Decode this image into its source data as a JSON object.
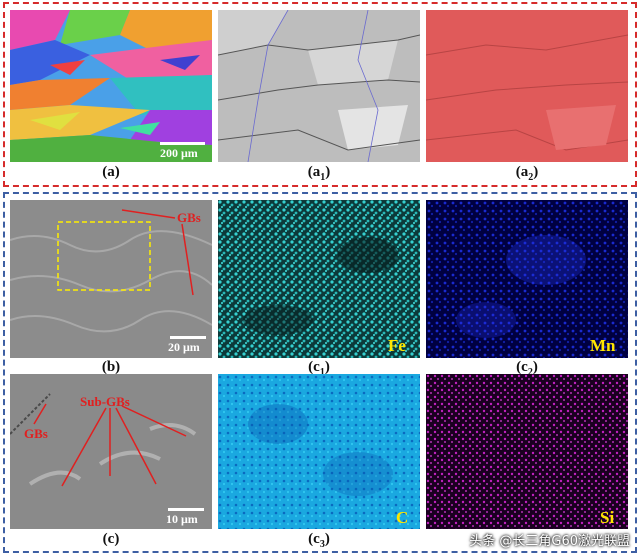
{
  "top_group": {
    "border_color": "#d62b2b",
    "captions": {
      "a": "(a)",
      "a1_base": "(a",
      "a1_sub": "1",
      "a2_base": "(a",
      "a2_sub": "2",
      "close": ")"
    },
    "scale_label": "200 μm"
  },
  "bottom_group": {
    "border_color": "#3d5fa3",
    "captions": {
      "b": "(b)",
      "c": "(c)",
      "base": "(c",
      "close": ")",
      "c1_sub": "1",
      "c2_sub": "2",
      "c3_sub": "3"
    },
    "scale_b": "20 μm",
    "scale_c": "10 μm",
    "annotations": {
      "gbs_b": "GBs",
      "gbs_c": "GBs",
      "sub_gbs": "Sub-GBs"
    },
    "elements": {
      "c1": "Fe",
      "c2": "Mn",
      "c3": "C",
      "c4": "Si"
    }
  },
  "watermark": "头条 @长三角G60激光联盟",
  "colors": {
    "annotation": "#e02020",
    "element_label": "#ffe600"
  }
}
